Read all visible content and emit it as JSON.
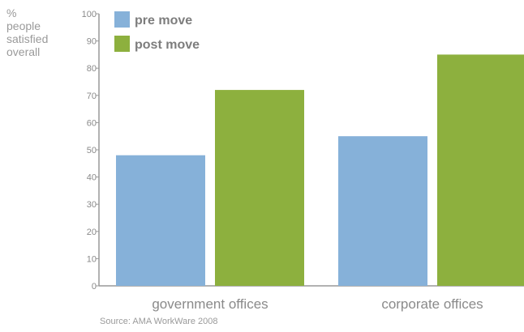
{
  "ylabel_lines": [
    "%",
    "people",
    "satisfied",
    "overall"
  ],
  "source": "Source: AMA WorkWare 2008",
  "colors": {
    "pre": "#86b1d9",
    "post": "#8db03e",
    "axis": "#999999"
  },
  "chart_data": {
    "type": "bar",
    "title": "",
    "xlabel": "",
    "ylabel": "% people satisfied overall",
    "categories": [
      "government offices",
      "corporate offices"
    ],
    "series": [
      {
        "name": "pre move",
        "values": [
          48,
          55
        ]
      },
      {
        "name": "post move",
        "values": [
          72,
          85
        ]
      }
    ],
    "ylim": [
      0,
      100
    ],
    "yticks": [
      0,
      10,
      20,
      30,
      40,
      50,
      60,
      70,
      80,
      90,
      100
    ],
    "legend": "top-left",
    "grid": false
  }
}
